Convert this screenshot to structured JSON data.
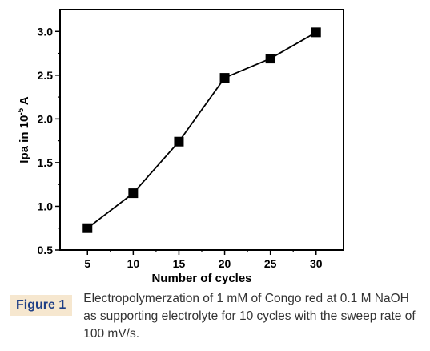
{
  "chart_data": {
    "type": "line",
    "x": [
      5,
      10,
      15,
      20,
      25,
      30
    ],
    "series": [
      {
        "values": [
          0.75,
          1.15,
          1.74,
          2.47,
          2.69,
          2.99
        ]
      }
    ],
    "xlabel": "Number of cycles",
    "ylabel_main": "Ipa in 10",
    "ylabel_exp": "-5",
    "ylabel_unit": " A",
    "xticks": [
      "5",
      "10",
      "15",
      "20",
      "25",
      "30"
    ],
    "yticks": [
      "0.5",
      "1.0",
      "1.5",
      "2.0",
      "2.5",
      "3.0"
    ],
    "xlim": [
      2,
      33
    ],
    "ylim": [
      0.5,
      3.25
    ],
    "grid": false,
    "marker": "square"
  },
  "caption": {
    "label": "Figure 1",
    "text": "Electropolymerzation of 1 mM of Congo red at 0.1 M NaOH as supporting electrolyte for 10 cycles with the sweep rate of 100 mV/s."
  }
}
